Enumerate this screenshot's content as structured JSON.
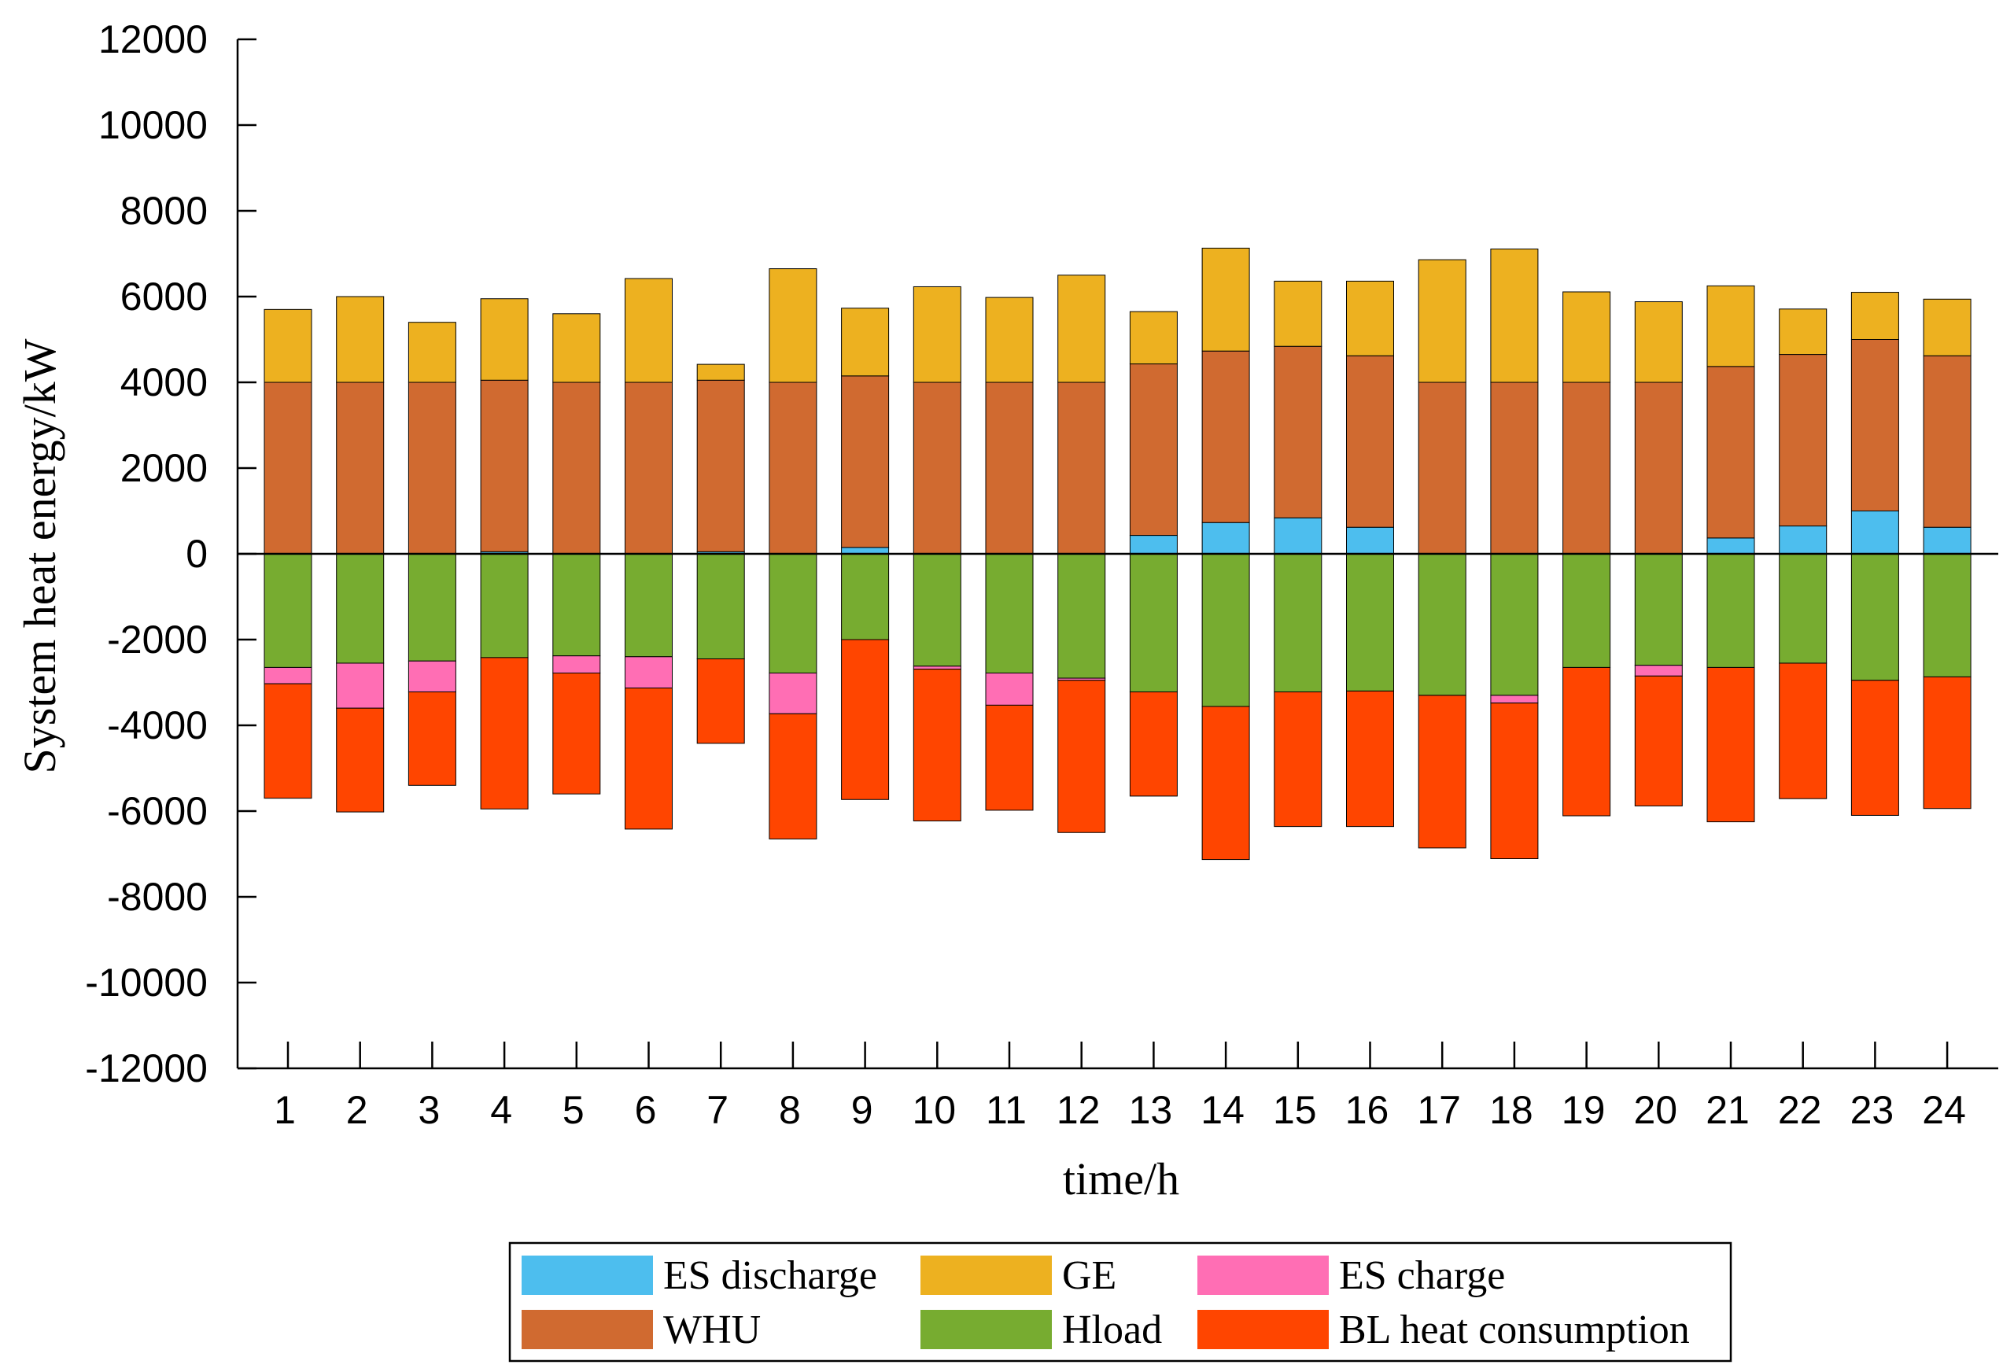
{
  "chart_data": {
    "type": "bar",
    "stacked": true,
    "xlabel": "time/h",
    "ylabel": "System heat energy/kW",
    "ylim": [
      -12000,
      12000
    ],
    "yticks": [
      12000,
      10000,
      8000,
      6000,
      4000,
      2000,
      0,
      -2000,
      -4000,
      -6000,
      -8000,
      -10000,
      -12000
    ],
    "categories": [
      "1",
      "2",
      "3",
      "4",
      "5",
      "6",
      "7",
      "8",
      "9",
      "10",
      "11",
      "12",
      "13",
      "14",
      "15",
      "16",
      "17",
      "18",
      "19",
      "20",
      "21",
      "22",
      "23",
      "24"
    ],
    "legend_position": "bottom",
    "series": [
      {
        "name": "ES discharge",
        "color": "#4DBEEE",
        "values": [
          0,
          0,
          0,
          50,
          0,
          0,
          50,
          0,
          150,
          0,
          0,
          0,
          430,
          730,
          840,
          620,
          0,
          0,
          0,
          0,
          370,
          650,
          1000,
          620
        ]
      },
      {
        "name": "WHU",
        "color": "#D06A30",
        "values": [
          4000,
          4000,
          4000,
          4000,
          4000,
          4000,
          4000,
          4000,
          4000,
          4000,
          4000,
          4000,
          4000,
          4000,
          4000,
          4000,
          4000,
          4000,
          4000,
          4000,
          4000,
          4000,
          4000,
          4000
        ]
      },
      {
        "name": "GE",
        "color": "#EDB120",
        "values": [
          1700,
          2000,
          1400,
          1900,
          1600,
          2420,
          370,
          2650,
          1580,
          2230,
          1980,
          2500,
          1220,
          2400,
          1520,
          1740,
          2860,
          3110,
          2110,
          1880,
          1880,
          1060,
          1100,
          1320
        ]
      },
      {
        "name": "Hload",
        "color": "#77AC30",
        "values": [
          -2650,
          -2550,
          -2500,
          -2420,
          -2380,
          -2400,
          -2450,
          -2780,
          -2000,
          -2620,
          -2780,
          -2900,
          -3220,
          -3560,
          -3220,
          -3200,
          -3300,
          -3300,
          -2650,
          -2600,
          -2650,
          -2550,
          -2950,
          -2870
        ]
      },
      {
        "name": "ES charge",
        "color": "#FF6EB4",
        "values": [
          -380,
          -1050,
          -720,
          0,
          -400,
          -730,
          0,
          -950,
          0,
          -70,
          -750,
          -50,
          0,
          0,
          0,
          0,
          0,
          -180,
          0,
          -250,
          0,
          0,
          0,
          0
        ]
      },
      {
        "name": "BL heat consumption",
        "color": "#FF4500",
        "values": [
          -2670,
          -2420,
          -2180,
          -3530,
          -2820,
          -3290,
          -1970,
          -2920,
          -3730,
          -3540,
          -2450,
          -3550,
          -2430,
          -3570,
          -3140,
          -3160,
          -3560,
          -3630,
          -3460,
          -3030,
          -3600,
          -3160,
          -3150,
          -3070
        ]
      }
    ],
    "legend": [
      [
        "ES discharge",
        "GE",
        "ES charge"
      ],
      [
        "WHU",
        "Hload",
        "BL heat consumption"
      ]
    ]
  }
}
